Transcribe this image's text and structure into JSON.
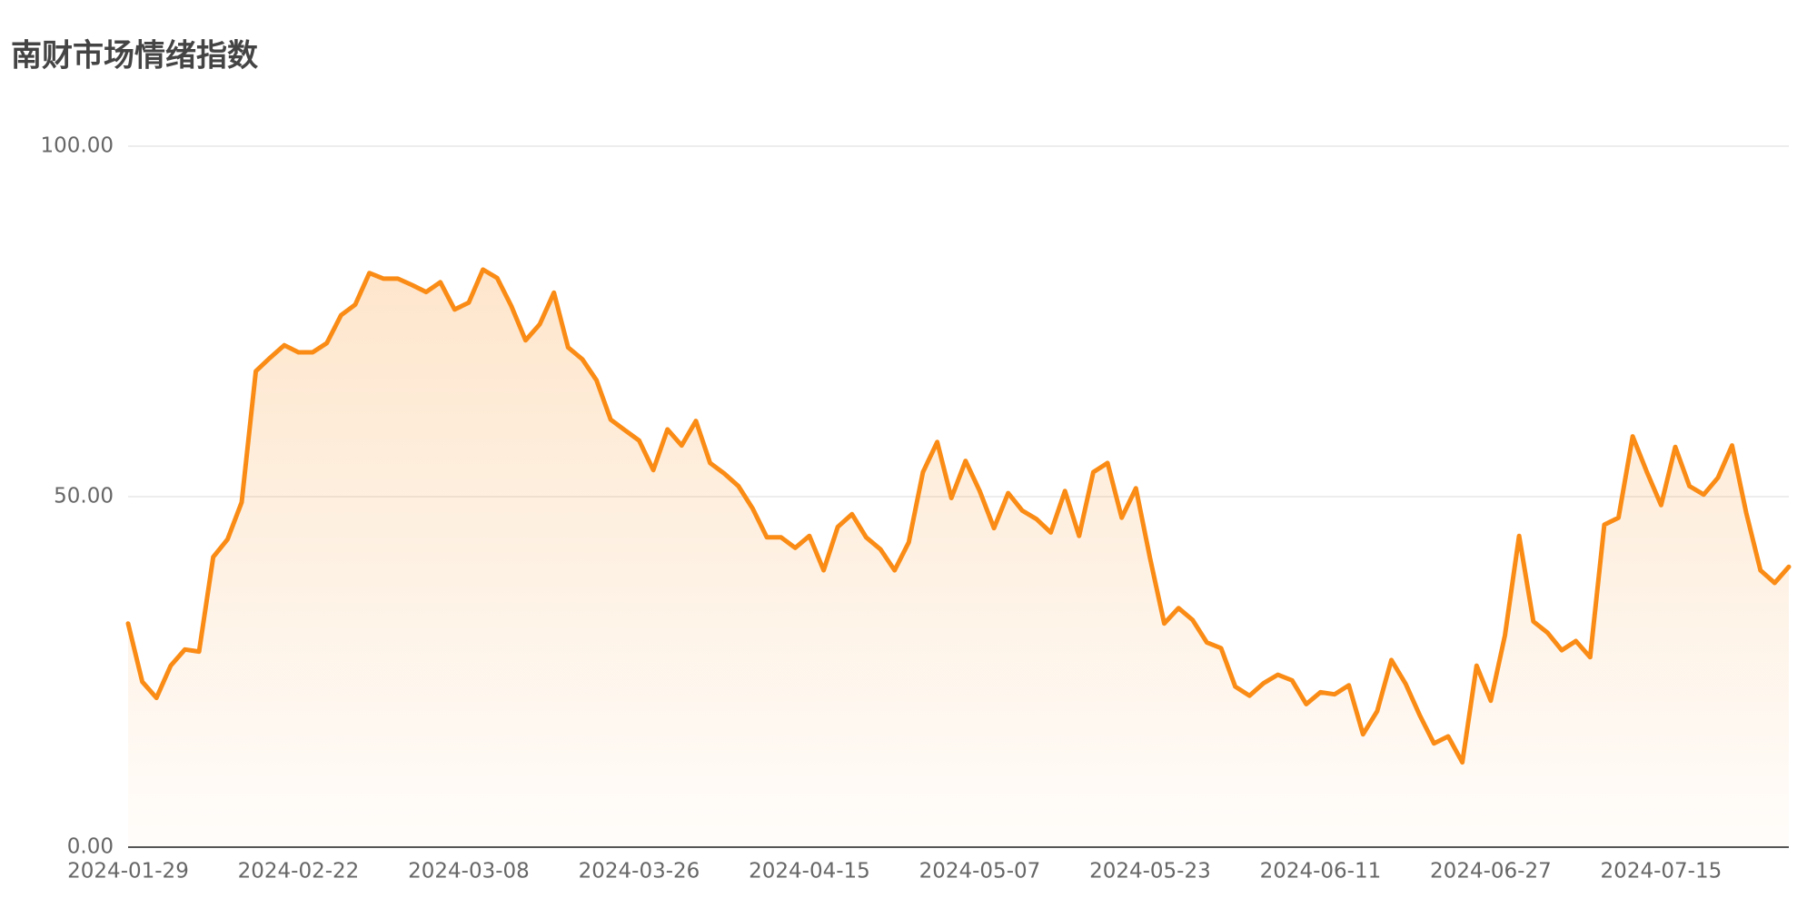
{
  "chart_data": {
    "type": "line",
    "title": "南财市场情绪指数",
    "categories": [
      "2024-01-29",
      null,
      null,
      null,
      null,
      null,
      null,
      null,
      null,
      null,
      null,
      null,
      "2024-02-22",
      null,
      null,
      null,
      null,
      null,
      null,
      null,
      null,
      null,
      null,
      null,
      "2024-03-08",
      null,
      null,
      null,
      null,
      null,
      null,
      null,
      null,
      null,
      null,
      null,
      "2024-03-26",
      null,
      null,
      null,
      null,
      null,
      null,
      null,
      null,
      null,
      null,
      null,
      "2024-04-15",
      null,
      null,
      null,
      null,
      null,
      null,
      null,
      null,
      null,
      null,
      null,
      "2024-05-07",
      null,
      null,
      null,
      null,
      null,
      null,
      null,
      null,
      null,
      null,
      null,
      "2024-05-23",
      null,
      null,
      null,
      null,
      null,
      null,
      null,
      null,
      null,
      null,
      null,
      "2024-06-11",
      null,
      null,
      null,
      null,
      null,
      null,
      null,
      null,
      null,
      null,
      null,
      "2024-06-27",
      null,
      null,
      null,
      null,
      null,
      null,
      null,
      null,
      null,
      null,
      null,
      "2024-07-15",
      null,
      null,
      null,
      null,
      null,
      null,
      null,
      null,
      null
    ],
    "values": [
      31.9,
      23.6,
      21.3,
      25.9,
      28.2,
      27.9,
      41.4,
      43.9,
      49.2,
      67.9,
      69.8,
      71.6,
      70.6,
      70.6,
      71.9,
      75.9,
      77.4,
      81.9,
      81.1,
      81.1,
      80.2,
      79.2,
      80.6,
      76.7,
      77.7,
      82.4,
      81.2,
      77.2,
      72.3,
      74.6,
      79.1,
      71.3,
      69.6,
      66.6,
      61.0,
      59.5,
      58.0,
      53.8,
      59.6,
      57.3,
      60.8,
      54.8,
      53.3,
      51.5,
      48.3,
      44.2,
      44.2,
      42.7,
      44.4,
      39.5,
      45.7,
      47.5,
      44.2,
      42.5,
      39.5,
      43.5,
      53.5,
      57.8,
      49.8,
      55.1,
      50.8,
      45.5,
      50.5,
      48.0,
      46.8,
      44.9,
      50.8,
      44.4,
      53.5,
      54.8,
      47.0,
      51.2,
      41.2,
      31.9,
      34.1,
      32.4,
      29.2,
      28.4,
      22.9,
      21.6,
      23.4,
      24.6,
      23.8,
      20.4,
      22.1,
      21.8,
      23.1,
      16.1,
      19.4,
      26.7,
      23.3,
      18.8,
      14.8,
      15.8,
      12.1,
      25.9,
      20.9,
      30.2,
      44.4,
      32.2,
      30.6,
      28.1,
      29.4,
      27.1,
      46.0,
      47.0,
      58.6,
      53.5,
      48.8,
      57.1,
      51.5,
      50.3,
      52.7,
      57.3,
      47.7,
      39.5,
      37.7,
      40.0
    ],
    "color": "#fa8c16",
    "ylim": [
      0,
      100
    ],
    "yticks": [
      {
        "value": 0,
        "label": "0.00"
      },
      {
        "value": 50,
        "label": "50.00"
      },
      {
        "value": 100,
        "label": "100.00"
      }
    ],
    "grid": true
  }
}
